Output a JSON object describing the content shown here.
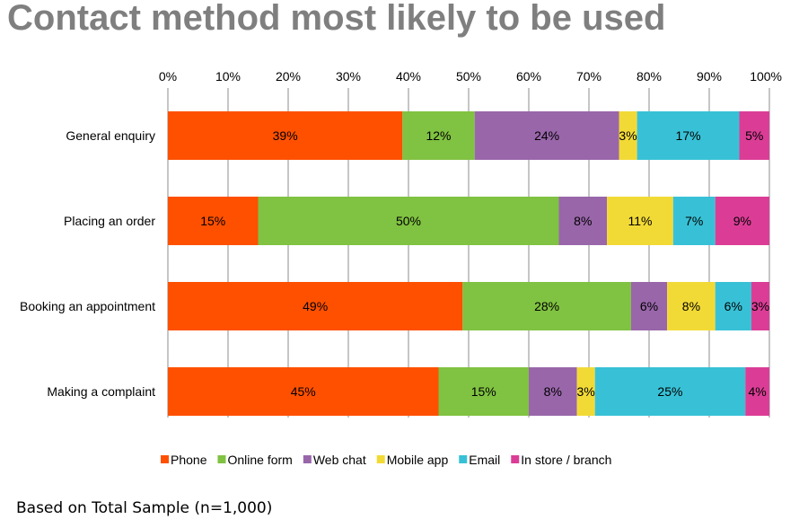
{
  "chart_data": {
    "type": "bar",
    "orientation": "horizontal",
    "stacked": "100%",
    "title": "Contact method most likely to be used",
    "footnote": "Based on Total Sample (n=1,000)",
    "categories": [
      "General enquiry",
      "Placing an order",
      "Booking an appointment",
      "Making a complaint"
    ],
    "xlim": [
      0,
      100
    ],
    "xticks": [
      "0%",
      "10%",
      "20%",
      "30%",
      "40%",
      "50%",
      "60%",
      "70%",
      "80%",
      "90%",
      "100%"
    ],
    "grid": true,
    "legend": "bottom",
    "series": [
      {
        "name": "Phone",
        "color": "#FF5000",
        "values": [
          39,
          15,
          49,
          45
        ]
      },
      {
        "name": "Online form",
        "color": "#80C241",
        "values": [
          12,
          50,
          28,
          15
        ]
      },
      {
        "name": "Web chat",
        "color": "#9966AA",
        "values": [
          24,
          8,
          6,
          8
        ]
      },
      {
        "name": "Mobile app",
        "color": "#F2DA36",
        "values": [
          3,
          11,
          8,
          3
        ]
      },
      {
        "name": "Email",
        "color": "#38C1D6",
        "values": [
          17,
          7,
          6,
          25
        ]
      },
      {
        "name": "In store / branch",
        "color": "#DB3D96",
        "values": [
          5,
          9,
          3,
          4
        ]
      }
    ]
  }
}
